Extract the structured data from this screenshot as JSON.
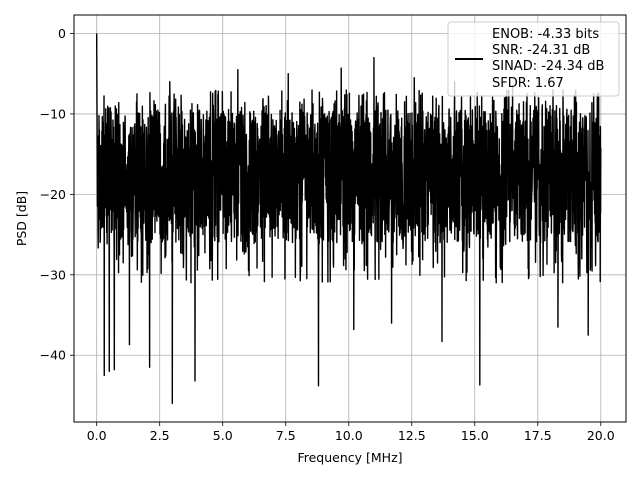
{
  "chart_data": {
    "type": "line",
    "title": "",
    "xlabel": "Frequency [MHz]",
    "ylabel": "PSD [dB]",
    "xlim": [
      -0.9,
      21.0
    ],
    "ylim": [
      -48.3,
      2.3
    ],
    "x_ticks": [
      0.0,
      2.5,
      5.0,
      7.5,
      10.0,
      12.5,
      15.0,
      17.5,
      20.0
    ],
    "x_tick_labels": [
      "0.0",
      "2.5",
      "5.0",
      "7.5",
      "10.0",
      "12.5",
      "15.0",
      "17.5",
      "20.0"
    ],
    "y_ticks": [
      0,
      -10,
      -20,
      -30,
      -40
    ],
    "y_tick_labels": [
      "0",
      "−10",
      "−20",
      "−30",
      "−40"
    ],
    "grid": true,
    "legend_position": "top-right",
    "series": [
      {
        "line_color": "#000000",
        "x_range": [
          0.0,
          20.0
        ],
        "peak": {
          "x": 0.0,
          "y": 0.0
        },
        "band_top": -9.5,
        "band_bottom": -26.0,
        "notable_dips": [
          {
            "x": 0.3,
            "y": -42.5
          },
          {
            "x": 0.5,
            "y": -42.0
          },
          {
            "x": 0.7,
            "y": -41.8
          },
          {
            "x": 1.3,
            "y": -38.7
          },
          {
            "x": 2.1,
            "y": -41.5
          },
          {
            "x": 3.0,
            "y": -46.0
          },
          {
            "x": 3.9,
            "y": -43.2
          },
          {
            "x": 5.6,
            "y": -35.5
          },
          {
            "x": 8.8,
            "y": -43.8
          },
          {
            "x": 10.2,
            "y": -36.8
          },
          {
            "x": 11.7,
            "y": -36.0
          },
          {
            "x": 13.7,
            "y": -38.3
          },
          {
            "x": 15.2,
            "y": -43.7
          },
          {
            "x": 18.3,
            "y": -36.5
          },
          {
            "x": 19.5,
            "y": -37.5
          }
        ],
        "notable_peaks": [
          {
            "x": 2.9,
            "y": -6.0
          },
          {
            "x": 5.6,
            "y": -4.5
          },
          {
            "x": 7.6,
            "y": -5.0
          },
          {
            "x": 9.7,
            "y": -4.3
          },
          {
            "x": 11.0,
            "y": -3.0
          },
          {
            "x": 12.6,
            "y": -5.5
          },
          {
            "x": 14.2,
            "y": -6.0
          },
          {
            "x": 16.5,
            "y": -6.5
          },
          {
            "x": 18.5,
            "y": -7.0
          }
        ]
      }
    ],
    "legend": {
      "entries": [
        "ENOB: -4.33 bits",
        "SNR: -24.31 dB",
        "SINAD: -24.34 dB",
        "SFDR: 1.67"
      ]
    }
  }
}
